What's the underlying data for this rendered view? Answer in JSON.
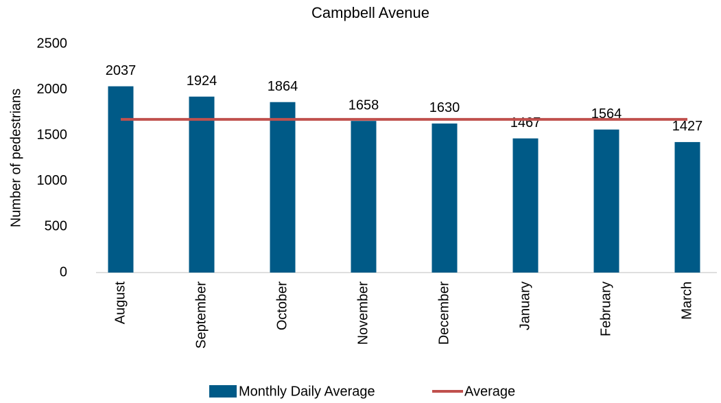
{
  "chart_data": {
    "type": "bar",
    "title": "Campbell Avenue",
    "y_label": "Number of pedestrians",
    "categories": [
      "August",
      "September",
      "October",
      "November",
      "December",
      "January",
      "February",
      "March"
    ],
    "series": [
      {
        "name": "Monthly Daily Average",
        "type": "bar",
        "color": "#005a87",
        "values": [
          2037,
          1924,
          1864,
          1658,
          1630,
          1467,
          1564,
          1427
        ]
      },
      {
        "name": "Average",
        "type": "line",
        "color": "#c0504d",
        "values": [
          1675,
          1675,
          1675,
          1675,
          1675,
          1675,
          1675,
          1675
        ]
      }
    ],
    "ylim": [
      0,
      2500
    ],
    "yticks": [
      0,
      500,
      1000,
      1500,
      2000,
      2500
    ],
    "grid": false,
    "legend": "bottom"
  }
}
